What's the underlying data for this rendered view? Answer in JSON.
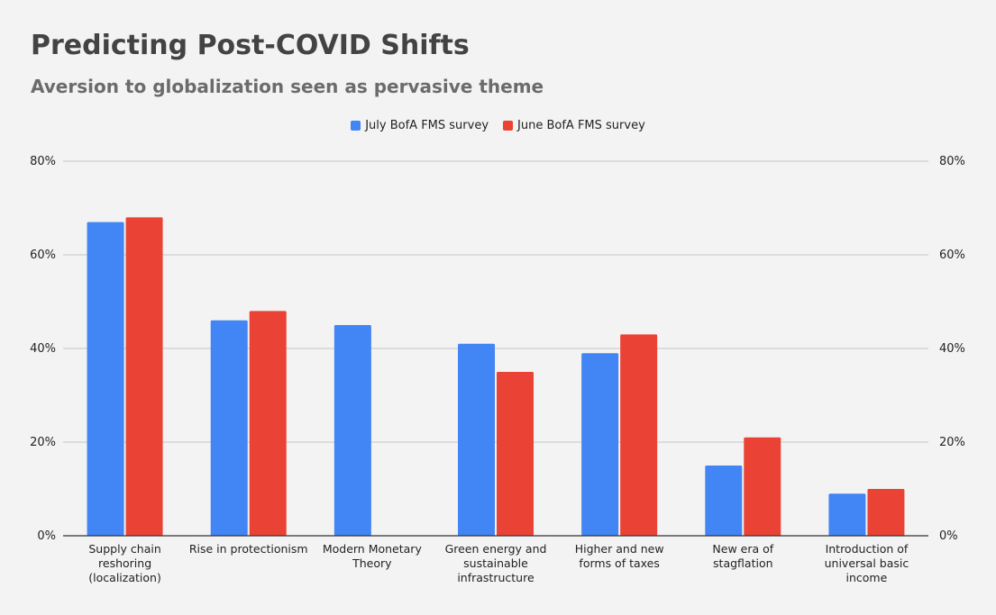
{
  "title": "Predicting Post-COVID Shifts",
  "subtitle": "Aversion to globalization seen as pervasive theme",
  "colors": {
    "series_july": "#4285f4",
    "series_june": "#ea4335",
    "background": "#f3f3f3",
    "gridline": "#c6c6c6",
    "axis": "#333333"
  },
  "chart_data": {
    "type": "bar",
    "title": "Predicting Post-COVID Shifts",
    "subtitle": "Aversion to globalization seen as pervasive theme",
    "categories": [
      "Supply chain reshoring (localization)",
      "Rise in protectionism",
      "Modern Monetary Theory",
      "Green energy and sustainable infrastructure",
      "Higher and new forms of taxes",
      "New era of stagflation",
      "Introduction of universal basic income"
    ],
    "category_label_lines": [
      [
        "Supply chain",
        "reshoring",
        "(localization)"
      ],
      [
        "Rise in protectionism"
      ],
      [
        "Modern Monetary",
        "Theory"
      ],
      [
        "Green energy and",
        "sustainable",
        "infrastructure"
      ],
      [
        "Higher and new",
        "forms of taxes"
      ],
      [
        "New era of",
        "stagflation"
      ],
      [
        "Introduction of",
        "universal basic",
        "income"
      ]
    ],
    "series": [
      {
        "name": "July BofA FMS survey",
        "values": [
          67,
          46,
          45,
          41,
          39,
          15,
          9
        ]
      },
      {
        "name": "June BofA FMS survey",
        "values": [
          68,
          48,
          null,
          35,
          43,
          21,
          10
        ]
      }
    ],
    "y_ticks": [
      "0%",
      "20%",
      "40%",
      "60%",
      "80%"
    ],
    "y_tick_values": [
      0,
      20,
      40,
      60,
      80
    ],
    "ylim": [
      0,
      80
    ],
    "secondary_y_axis": true,
    "grid": true,
    "legend_position": "top-center",
    "xlabel": "",
    "ylabel": ""
  }
}
